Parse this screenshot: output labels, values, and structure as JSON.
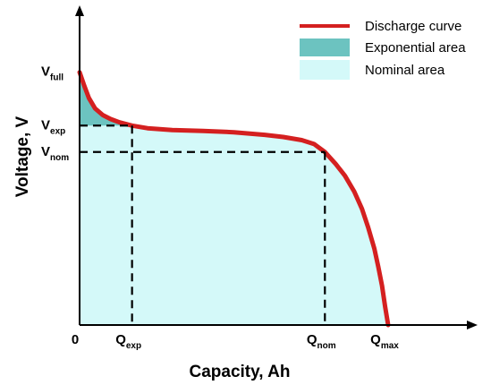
{
  "chart_data": {
    "type": "area",
    "title": "",
    "xlabel": "Capacity, Ah",
    "ylabel": "Voltage, V",
    "legend_position": "top-right",
    "legend": [
      {
        "label": "Discharge curve",
        "kind": "line",
        "color": "#d42020"
      },
      {
        "label": "Exponential area",
        "kind": "area",
        "color": "#6cc3c0"
      },
      {
        "label": "Nominal area",
        "kind": "area",
        "color": "#d4f9f9"
      }
    ],
    "x_ticks": [
      {
        "key": "zero",
        "main": "0",
        "sub": ""
      },
      {
        "key": "qexp",
        "main": "Q",
        "sub": "exp"
      },
      {
        "key": "qnom",
        "main": "Q",
        "sub": "nom"
      },
      {
        "key": "qmax",
        "main": "Q",
        "sub": "max"
      }
    ],
    "y_ticks": [
      {
        "key": "vfull",
        "main": "V",
        "sub": "full"
      },
      {
        "key": "vexp",
        "main": "V",
        "sub": "exp"
      },
      {
        "key": "vnom",
        "main": "V",
        "sub": "nom"
      }
    ],
    "xlim": [
      0,
      1
    ],
    "ylim": [
      0,
      1
    ],
    "key_points": {
      "qexp": 0.17,
      "qnom": 0.795,
      "qmax": 1.0,
      "vfull": 0.957,
      "vexp": 0.755,
      "vnom": 0.655
    },
    "series": [
      {
        "name": "Discharge curve",
        "x": [
          0,
          0.014,
          0.03,
          0.05,
          0.075,
          0.1,
          0.13,
          0.17,
          0.22,
          0.3,
          0.4,
          0.5,
          0.6,
          0.66,
          0.72,
          0.76,
          0.795,
          0.83,
          0.86,
          0.89,
          0.915,
          0.935,
          0.955,
          0.968,
          0.98,
          0.99,
          1.0
        ],
        "y": [
          0.957,
          0.91,
          0.86,
          0.82,
          0.795,
          0.78,
          0.767,
          0.755,
          0.745,
          0.738,
          0.735,
          0.73,
          0.72,
          0.712,
          0.7,
          0.685,
          0.655,
          0.61,
          0.565,
          0.505,
          0.44,
          0.37,
          0.29,
          0.22,
          0.15,
          0.07,
          0.0
        ]
      }
    ]
  }
}
